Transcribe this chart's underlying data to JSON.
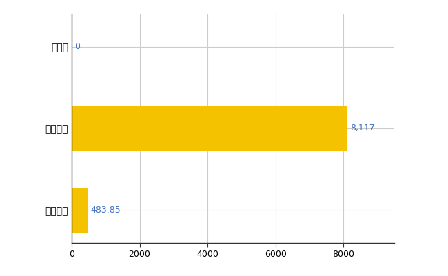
{
  "categories": [
    "全国平均",
    "全国最大",
    "鳥取県"
  ],
  "values": [
    483.85,
    8117,
    0
  ],
  "bar_color": "#F5C200",
  "value_labels": [
    "483.85",
    "8,117",
    "0"
  ],
  "xlim": [
    0,
    9500
  ],
  "xticks": [
    0,
    2000,
    4000,
    6000,
    8000
  ],
  "label_fontsize": 10,
  "tick_fontsize": 9,
  "value_label_color": "#4472C4",
  "grid_color": "#CCCCCC",
  "background_color": "#FFFFFF"
}
